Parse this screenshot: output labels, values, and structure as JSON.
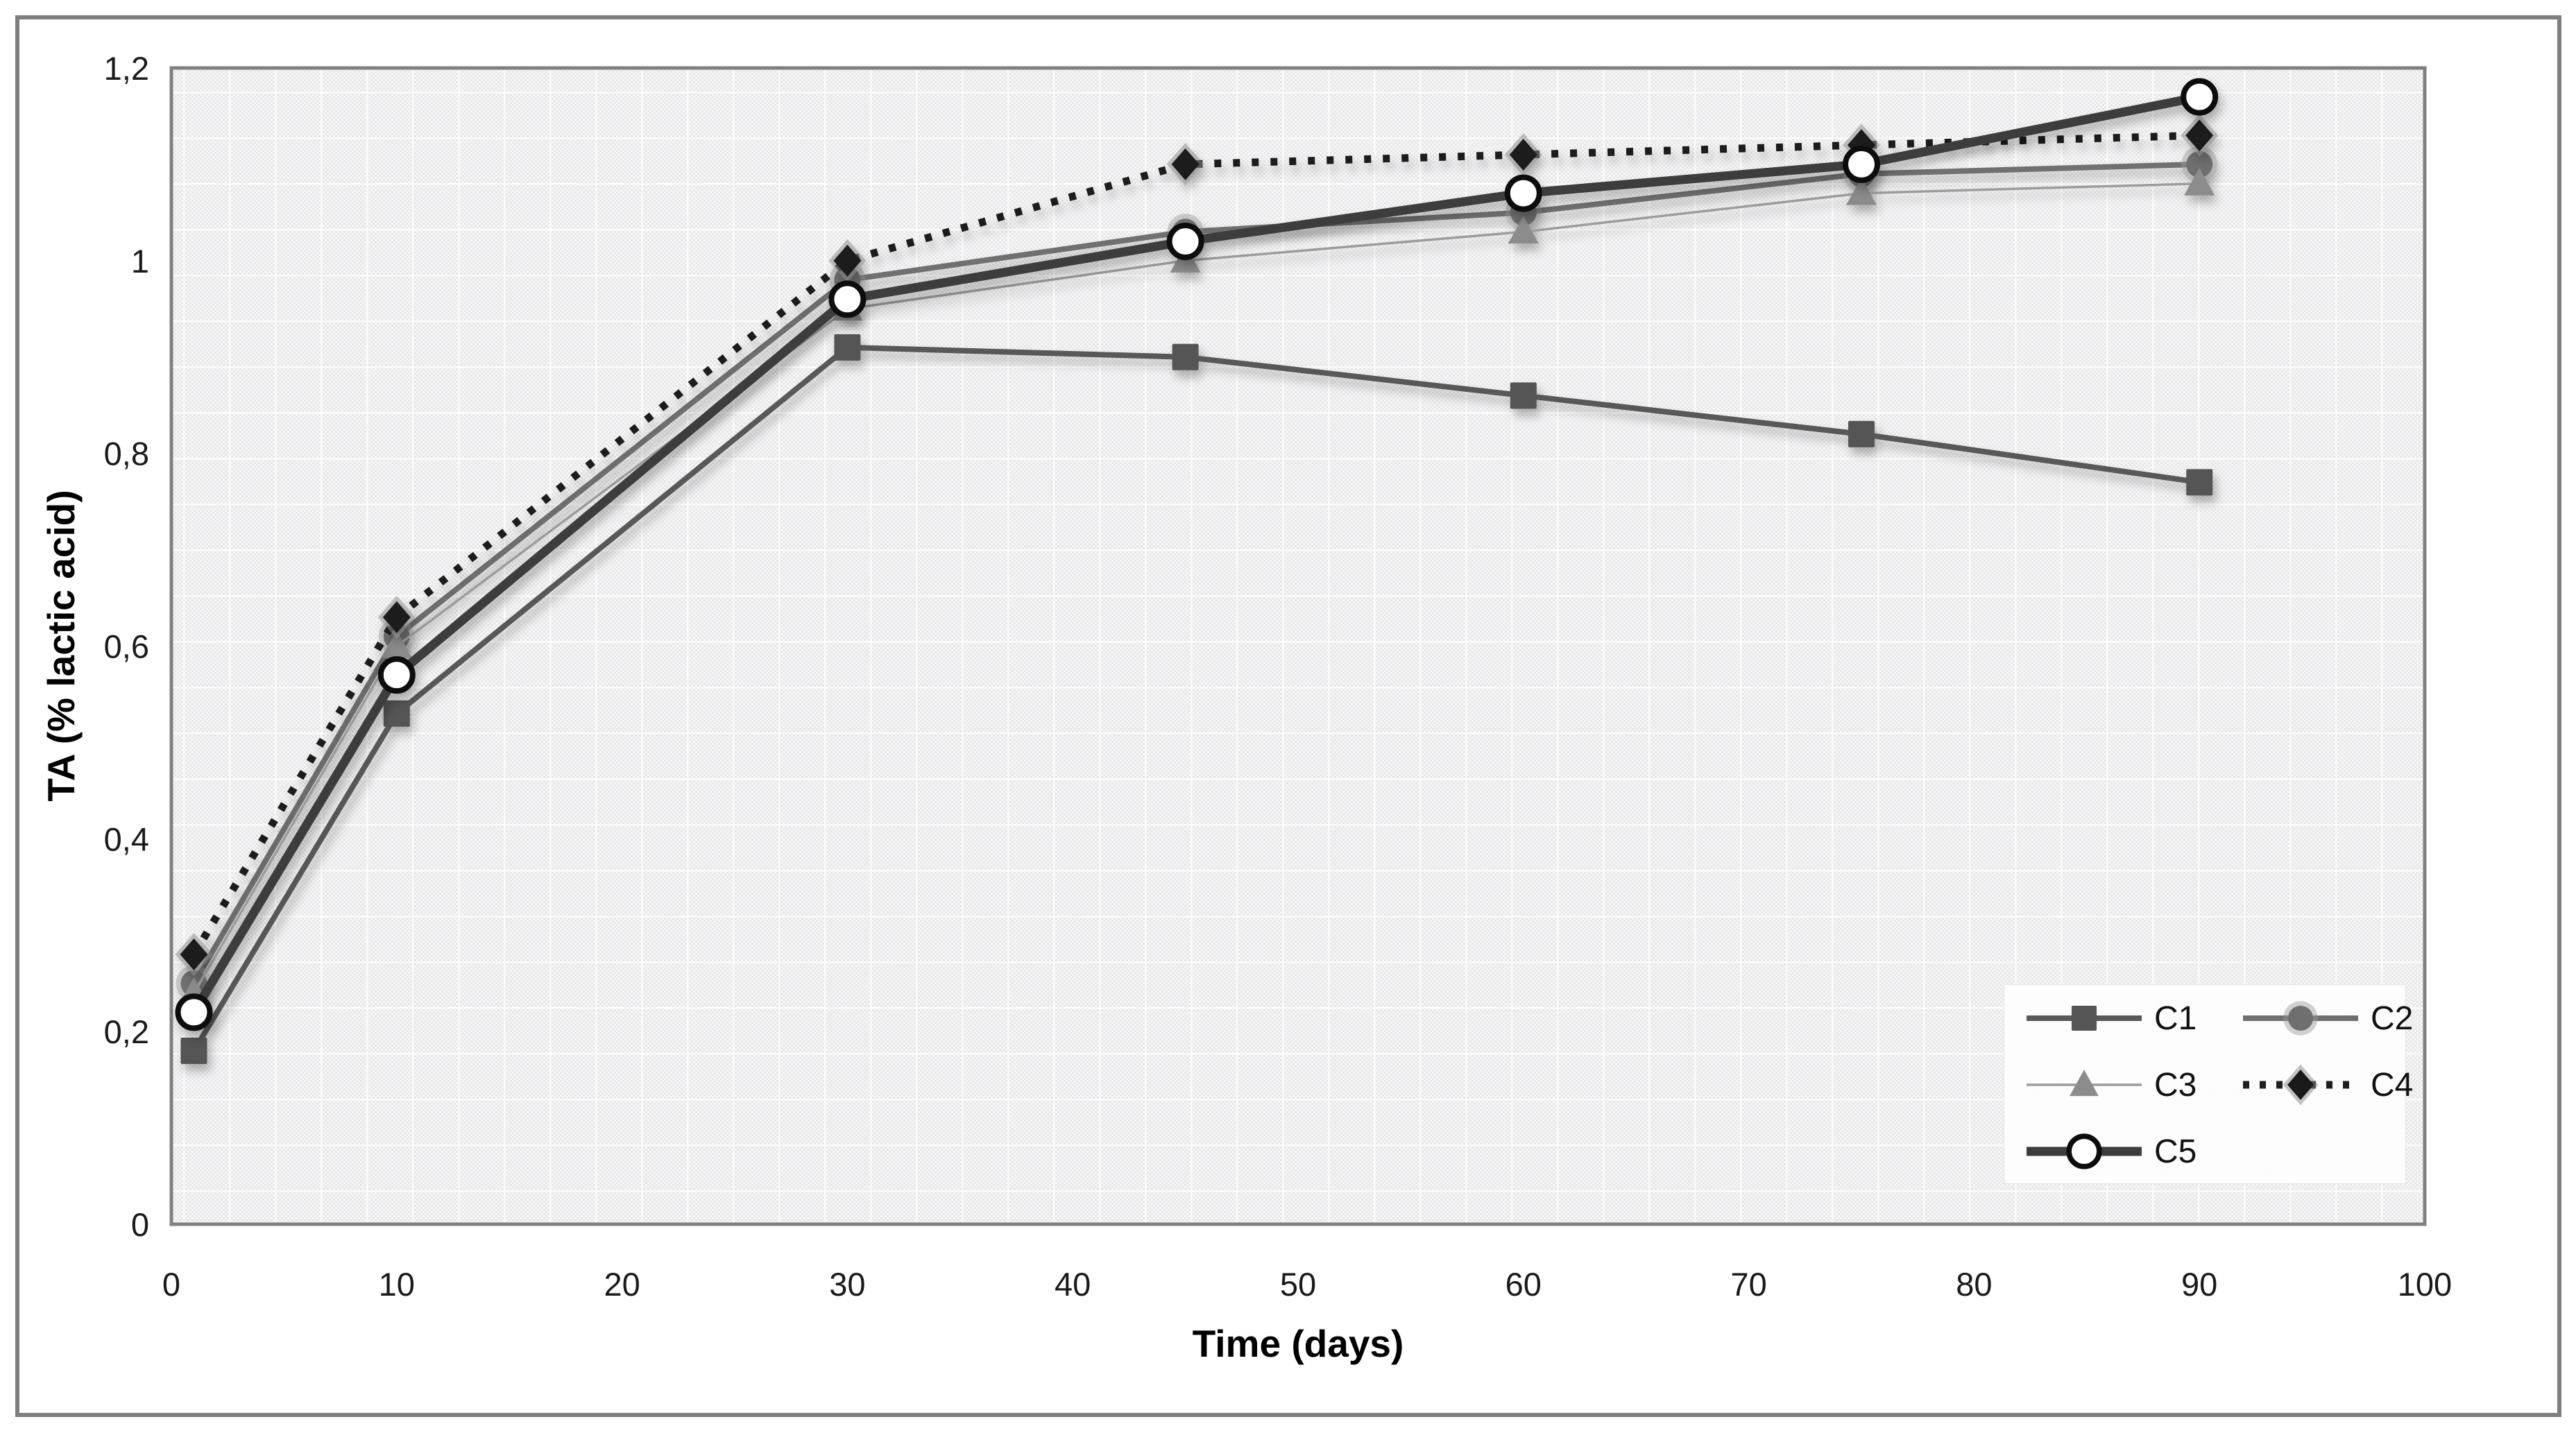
{
  "chart_data": {
    "type": "line",
    "title": "",
    "xlabel": "Time (days)",
    "ylabel": "TA (% lactic acid)",
    "xlim": [
      0,
      100
    ],
    "ylim": [
      0,
      1.2
    ],
    "grid": false,
    "legend_position": "inside-bottom-right",
    "x_ticks": [
      0,
      10,
      20,
      30,
      40,
      50,
      60,
      70,
      80,
      90,
      100
    ],
    "x_tick_labels": [
      "0",
      "10",
      "20",
      "30",
      "40",
      "50",
      "60",
      "70",
      "80",
      "90",
      "100"
    ],
    "y_ticks": [
      0,
      0.2,
      0.4,
      0.6,
      0.8,
      1,
      1.2
    ],
    "y_tick_labels": [
      "0",
      "0,2",
      "0,4",
      "0,6",
      "0,8",
      "1",
      "1,2"
    ],
    "x": [
      1,
      10,
      30,
      45,
      60,
      75,
      90
    ],
    "series": [
      {
        "name": "C1",
        "marker": "square",
        "line_style": "solid",
        "line_width": 8,
        "color": "#595959",
        "marker_color": "#555555",
        "values": [
          0.18,
          0.53,
          0.91,
          0.9,
          0.86,
          0.82,
          0.77
        ]
      },
      {
        "name": "C2",
        "marker": "circle",
        "line_style": "solid",
        "line_width": 8,
        "color": "#6f6f6f",
        "marker_color": "#6f6f6f",
        "values": [
          0.25,
          0.61,
          0.98,
          1.03,
          1.05,
          1.09,
          1.1
        ]
      },
      {
        "name": "C3",
        "marker": "triangle",
        "line_style": "solid",
        "line_width": 3.5,
        "color": "#9c9c9c",
        "marker_color": "#8c8c8c",
        "values": [
          0.24,
          0.6,
          0.95,
          1.0,
          1.03,
          1.07,
          1.08
        ]
      },
      {
        "name": "C4",
        "marker": "diamond",
        "line_style": "dotted",
        "line_width": 11,
        "color": "#1f1f1f",
        "marker_color": "#1a1a1a",
        "values": [
          0.28,
          0.63,
          1.0,
          1.1,
          1.11,
          1.12,
          1.13
        ]
      },
      {
        "name": "C5",
        "marker": "open-circle",
        "line_style": "solid",
        "line_width": 13,
        "color": "#3d3d3d",
        "marker_color": "#ffffff",
        "values": [
          0.22,
          0.57,
          0.96,
          1.02,
          1.07,
          1.1,
          1.17
        ]
      }
    ],
    "plot_bg_color": "#efeff0",
    "plot_border_color": "#808080",
    "outer_border_color": "#7f7f7f"
  }
}
